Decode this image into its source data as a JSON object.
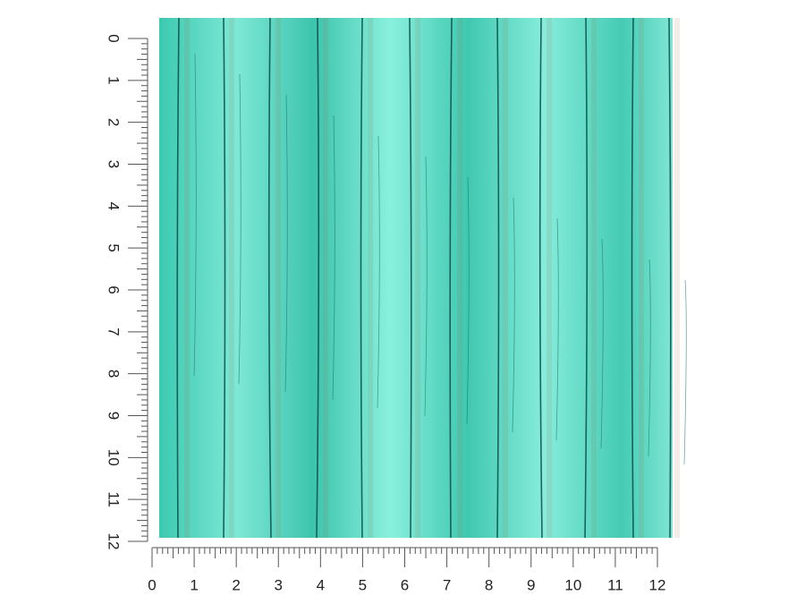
{
  "ruler_vertical": {
    "labels": [
      0,
      1,
      2,
      3,
      4,
      5,
      6,
      7,
      8,
      9,
      10,
      11,
      12
    ]
  },
  "ruler_horizontal": {
    "labels": [
      0,
      1,
      2,
      3,
      4,
      5,
      6,
      7,
      8,
      9,
      10,
      11,
      12
    ]
  }
}
